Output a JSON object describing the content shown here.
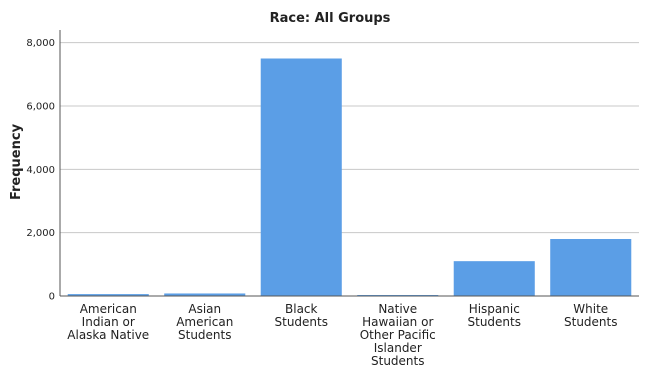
{
  "chart_data": {
    "type": "bar",
    "title": "Race: All Groups",
    "xlabel": "",
    "ylabel": "Frequency",
    "ylim": [
      0,
      8400
    ],
    "yticks": [
      0,
      2000,
      4000,
      6000,
      8000
    ],
    "ytick_labels": [
      "0",
      "2,000",
      "4,000",
      "6,000",
      "8,000"
    ],
    "grid": true,
    "legend": "none",
    "bar_color": "#5b9ee6",
    "categories": [
      "American Indian or Alaska Native",
      "Asian American Students",
      "Black Students",
      "Native Hawaiian or Other Pacific Islander Students",
      "Hispanic Students",
      "White Students"
    ],
    "category_label_lines": [
      [
        "American",
        "Indian or",
        "Alaska Native"
      ],
      [
        "Asian",
        "American",
        "Students"
      ],
      [
        "Black",
        "Students"
      ],
      [
        "Native",
        "Hawaiian or",
        "Other Pacific",
        "Islander",
        "Students"
      ],
      [
        "Hispanic",
        "Students"
      ],
      [
        "White",
        "Students"
      ]
    ],
    "values": [
      60,
      80,
      7500,
      10,
      1100,
      1800
    ]
  }
}
